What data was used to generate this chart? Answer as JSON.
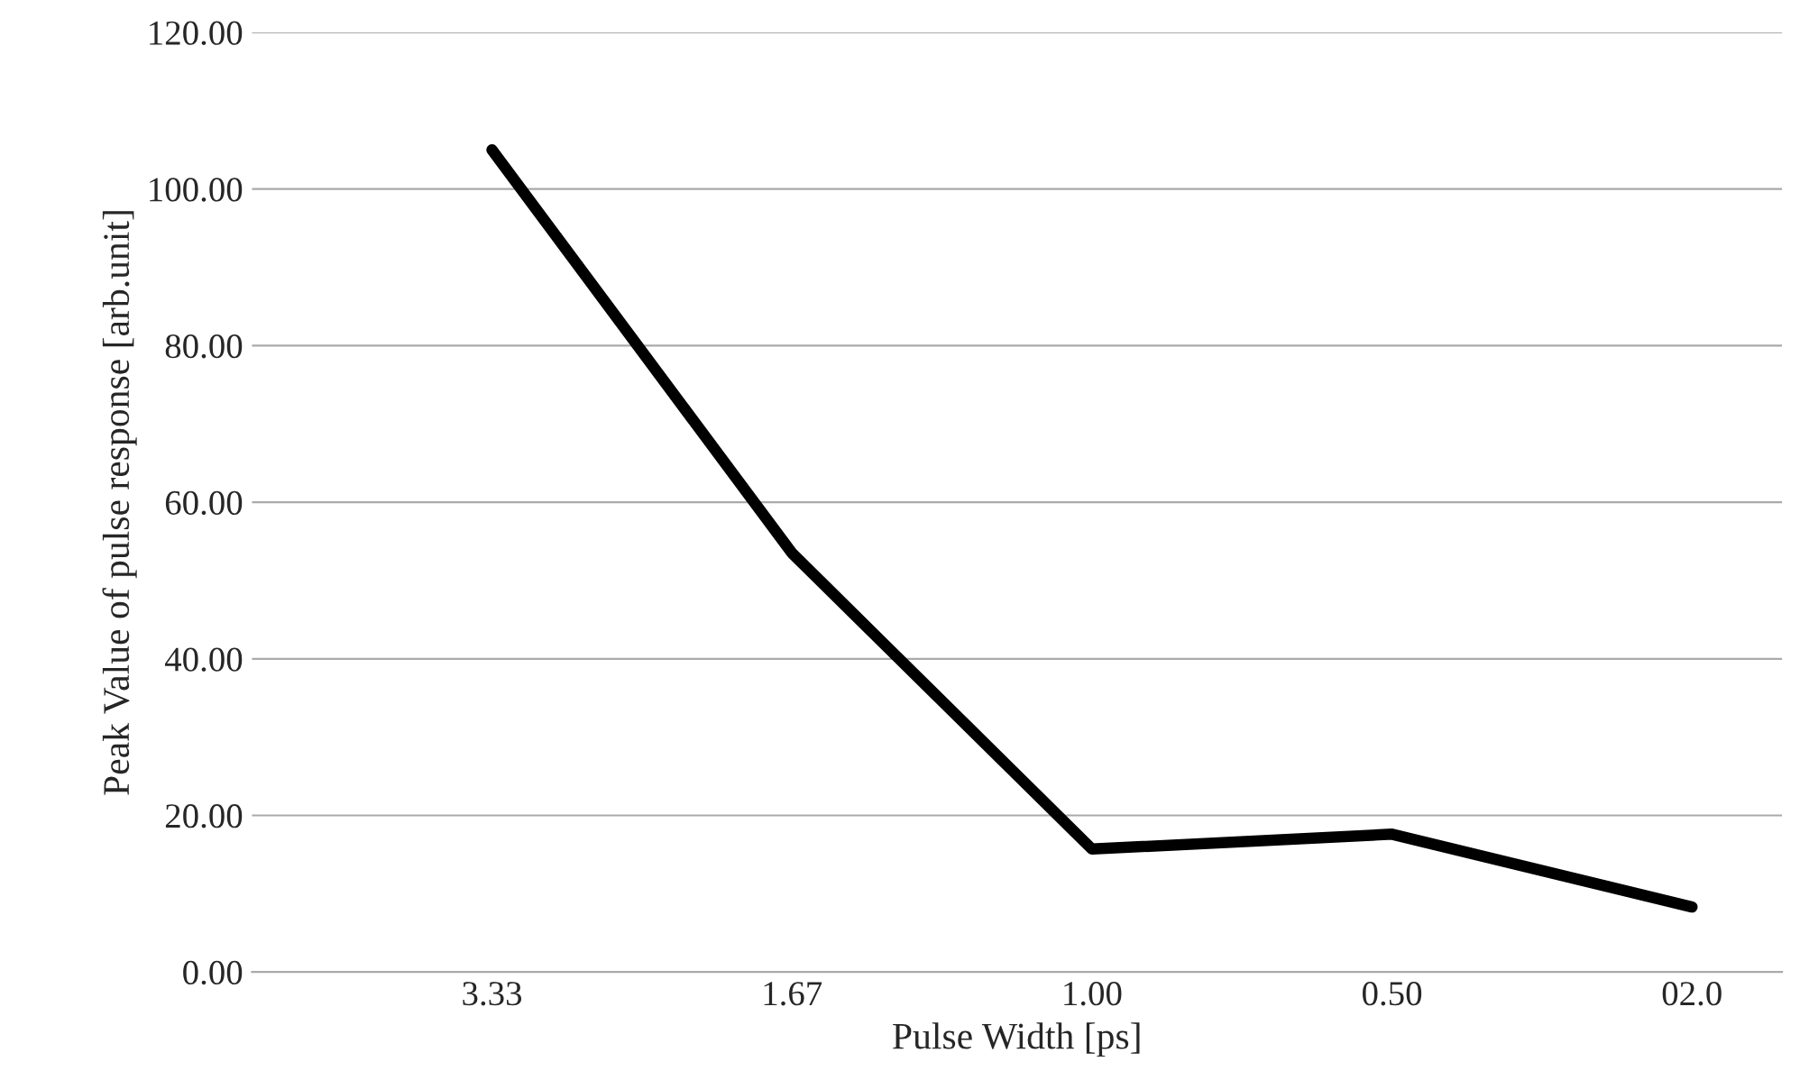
{
  "chart_data": {
    "type": "line",
    "xlabel": "Pulse Width [ps]",
    "ylabel": "Peak Value of pulse response [arb.unit]",
    "categories": [
      "3.33",
      "1.67",
      "1.00",
      "0.50",
      "02.0"
    ],
    "series": [
      {
        "color": "#000000",
        "values": [
          105,
          53.5,
          15.7,
          17.6,
          8.3
        ]
      }
    ],
    "ylim": [
      0,
      120
    ],
    "yticks": [
      {
        "value": 0,
        "label": "0.00"
      },
      {
        "value": 20,
        "label": "20.00"
      },
      {
        "value": 40,
        "label": "40.00"
      },
      {
        "value": 60,
        "label": "60.00"
      },
      {
        "value": 80,
        "label": "80.00"
      },
      {
        "value": 100,
        "label": "100.00"
      },
      {
        "value": 120,
        "label": "120.00"
      }
    ],
    "grid": "y",
    "legend": false,
    "marker": "none",
    "line_style": "solid"
  }
}
